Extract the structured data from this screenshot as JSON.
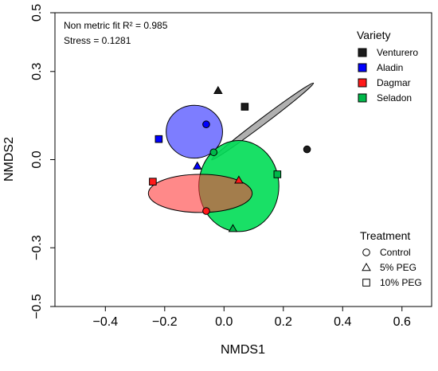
{
  "chart_data": {
    "type": "scatter",
    "xlabel": "NMDS1",
    "ylabel": "NMDS2",
    "xlim": [
      -0.57,
      0.7
    ],
    "ylim": [
      -0.5,
      0.5
    ],
    "xticks": [
      -0.4,
      -0.2,
      0.0,
      0.2,
      0.4,
      0.6
    ],
    "xtick_labels": [
      "−0.4",
      "−0.2",
      "0.0",
      "0.2",
      "0.4",
      "0.6"
    ],
    "yticks": [
      0.5,
      0.3,
      0.0,
      -0.3,
      -0.5
    ],
    "ytick_labels": [
      "0.5",
      "0.3",
      "0.0",
      "−0.3",
      "−0.5"
    ],
    "grid": false,
    "annotations": [
      {
        "id": "fit",
        "text": "Non metric fit R² = 0.985"
      },
      {
        "id": "stress",
        "text": "Stress = 0.1281"
      }
    ],
    "legend_variety": {
      "title": "Variety",
      "placement": "top-right",
      "items": [
        {
          "label": "Venturero",
          "color": "#1c1c1c"
        },
        {
          "label": "Aladin",
          "color": "#0000ff"
        },
        {
          "label": "Dagmar",
          "color": "#ff1a1a"
        },
        {
          "label": "Seladon",
          "color": "#00b84a"
        }
      ]
    },
    "legend_treatment": {
      "title": "Treatment",
      "placement": "bottom-right",
      "items": [
        {
          "label": "Control",
          "marker": "circle"
        },
        {
          "label": "5% PEG",
          "marker": "triangle"
        },
        {
          "label": "10% PEG",
          "marker": "square"
        }
      ]
    },
    "ellipses": [
      {
        "variety": "Venturero",
        "fill": "#b0b0b0",
        "opacity": 1.0,
        "cx": 0.13,
        "cy": 0.13,
        "rx": 0.215,
        "ry": 0.011,
        "angle_deg": -37
      },
      {
        "variety": "Aladin",
        "fill": "#6f6fff",
        "opacity": 0.9,
        "cx": -0.1,
        "cy": 0.095,
        "rx": 0.095,
        "ry": 0.09,
        "angle_deg": 0
      },
      {
        "variety": "Seladon",
        "fill": "#00dd55",
        "opacity": 0.9,
        "cx": 0.05,
        "cy": -0.09,
        "rx": 0.135,
        "ry": 0.155,
        "angle_deg": 0
      },
      {
        "variety": "Dagmar",
        "fill": "#ff3b3b",
        "opacity": 0.6,
        "cx": -0.08,
        "cy": -0.115,
        "rx": 0.175,
        "ry": 0.065,
        "angle_deg": 0
      }
    ],
    "series": [
      {
        "name": "Venturero",
        "color": "#1c1c1c",
        "points": [
          {
            "x": 0.28,
            "y": 0.035,
            "treatment": "Control"
          },
          {
            "x": -0.02,
            "y": 0.235,
            "treatment": "5% PEG"
          },
          {
            "x": 0.07,
            "y": 0.18,
            "treatment": "10% PEG"
          }
        ]
      },
      {
        "name": "Aladin",
        "color": "#0000ff",
        "points": [
          {
            "x": -0.06,
            "y": 0.12,
            "treatment": "Control"
          },
          {
            "x": -0.09,
            "y": -0.022,
            "treatment": "5% PEG"
          },
          {
            "x": -0.22,
            "y": 0.07,
            "treatment": "10% PEG"
          }
        ]
      },
      {
        "name": "Dagmar",
        "color": "#ff1a1a",
        "points": [
          {
            "x": -0.06,
            "y": -0.175,
            "treatment": "Control"
          },
          {
            "x": 0.05,
            "y": -0.07,
            "treatment": "5% PEG"
          },
          {
            "x": -0.24,
            "y": -0.075,
            "treatment": "10% PEG"
          }
        ]
      },
      {
        "name": "Seladon",
        "color": "#00b84a",
        "points": [
          {
            "x": -0.035,
            "y": 0.025,
            "treatment": "Control"
          },
          {
            "x": 0.03,
            "y": -0.235,
            "treatment": "5% PEG"
          },
          {
            "x": 0.18,
            "y": -0.05,
            "treatment": "10% PEG"
          }
        ]
      }
    ]
  }
}
